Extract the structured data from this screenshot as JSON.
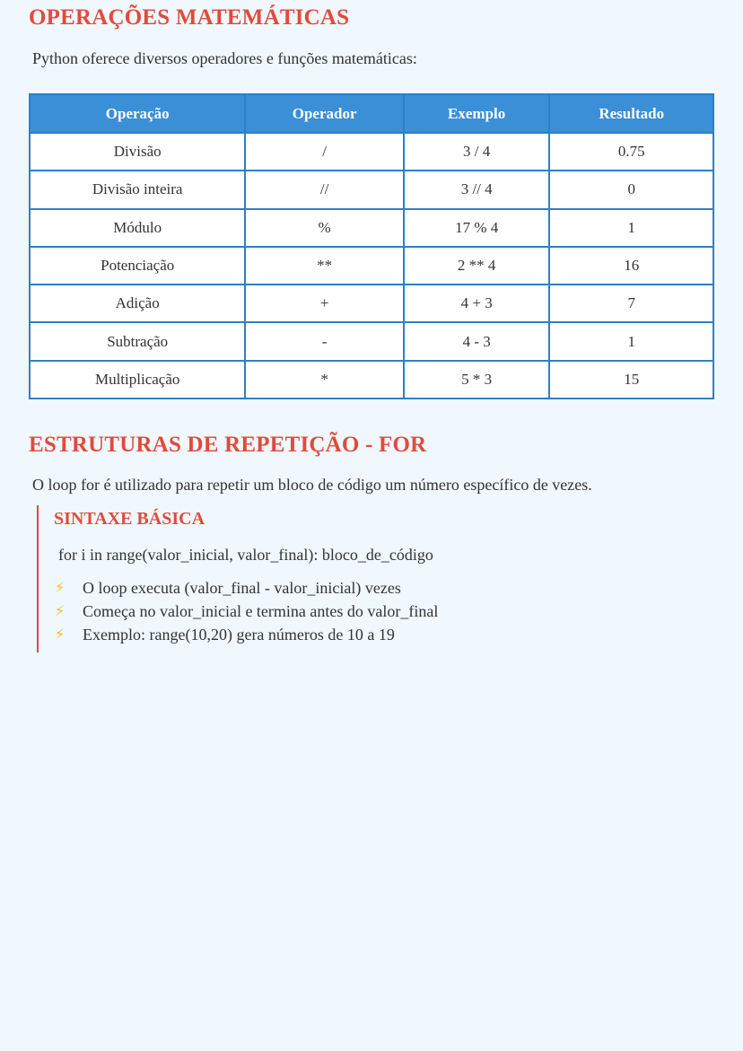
{
  "section1": {
    "title": "OPERAÇÕES MATEMÁTICAS",
    "intro": "Python oferece diversos operadores e funções matemáticas:",
    "table": {
      "headers": [
        "Operação",
        "Operador",
        "Exemplo",
        "Resultado"
      ],
      "rows": [
        [
          "Divisão",
          "/",
          "3 / 4",
          "0.75"
        ],
        [
          "Divisão inteira",
          "//",
          "3 // 4",
          "0"
        ],
        [
          "Módulo",
          "%",
          "17 % 4",
          "1"
        ],
        [
          "Potenciação",
          "**",
          "2 ** 4",
          "16"
        ],
        [
          "Adição",
          "+",
          "4 + 3",
          "7"
        ],
        [
          "Subtração",
          "-",
          "4 - 3",
          "1"
        ],
        [
          "Multiplicação",
          "*",
          "5 * 3",
          "15"
        ]
      ]
    }
  },
  "section2": {
    "title": "ESTRUTURAS DE REPETIÇÃO - FOR",
    "intro": "O loop for é utilizado para repetir um bloco de código um número específico de vezes.",
    "box": {
      "title": "SINTAXE BÁSICA",
      "syntax": "for i in range(valor_inicial, valor_final): bloco_de_código",
      "bullet_icon": "lightning-icon",
      "bullets": [
        "O loop executa (valor_final - valor_inicial) vezes",
        "Começa no valor_inicial e termina antes do valor_final",
        "Exemplo: range(10,20) gera números de 10 a 19"
      ]
    }
  },
  "colors": {
    "accent": "#e04b3c",
    "table_header": "#3a8fd6",
    "table_border": "#2f80c3",
    "background": "#f0f7fd",
    "bullet": "#f4c020"
  }
}
